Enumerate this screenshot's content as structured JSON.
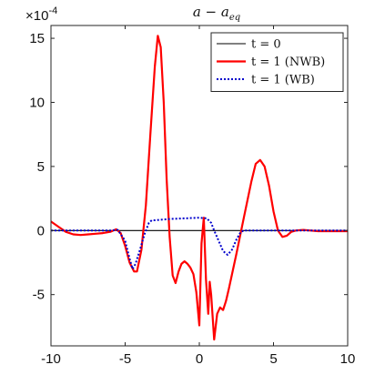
{
  "chart_data": {
    "type": "line",
    "title": "a − a_eq",
    "title_main": "a − a",
    "title_sub": "eq",
    "xlabel": "",
    "ylabel": "",
    "scale_prefix": "×10",
    "scale_exponent": "-4",
    "xlim": [
      -10,
      10
    ],
    "ylim": [
      -9,
      16
    ],
    "x_ticks": [
      -10,
      -5,
      0,
      5,
      10
    ],
    "x_tick_labels": [
      "-10",
      "-5",
      "0",
      "5",
      "10"
    ],
    "y_ticks": [
      -5,
      0,
      5,
      10,
      15
    ],
    "y_tick_labels": [
      "-5",
      "0",
      "5",
      "10",
      "15"
    ],
    "grid": false,
    "legend_position": "top-right",
    "series": [
      {
        "name": "t = 0",
        "color": "#000000",
        "style": "solid",
        "x": [
          -10,
          10
        ],
        "y": [
          0,
          0
        ]
      },
      {
        "name": "t = 1 (NWB)",
        "color": "#ff0000",
        "style": "solid",
        "x": [
          -10,
          -9.5,
          -9,
          -8.5,
          -8,
          -7.5,
          -7,
          -6.5,
          -6,
          -5.6,
          -5.3,
          -5,
          -4.7,
          -4.4,
          -4.2,
          -3.9,
          -3.6,
          -3.3,
          -3.0,
          -2.8,
          -2.6,
          -2.4,
          -2.2,
          -2.0,
          -1.8,
          -1.6,
          -1.4,
          -1.2,
          -1.0,
          -0.8,
          -0.6,
          -0.4,
          -0.2,
          0.0,
          0.15,
          0.3,
          0.45,
          0.6,
          0.7,
          0.8,
          1.0,
          1.2,
          1.4,
          1.6,
          1.8,
          2.0,
          2.5,
          3.0,
          3.5,
          3.8,
          4.1,
          4.4,
          4.7,
          5.0,
          5.3,
          5.6,
          5.9,
          6.2,
          6.5,
          7.0,
          7.5,
          8.0,
          9.0,
          10.0
        ],
        "y": [
          0.7,
          0.3,
          -0.1,
          -0.3,
          -0.35,
          -0.3,
          -0.25,
          -0.2,
          -0.1,
          0.1,
          -0.2,
          -1.2,
          -2.5,
          -3.2,
          -3.2,
          -1.5,
          2.0,
          7.5,
          12.8,
          15.2,
          14.3,
          10.0,
          4.0,
          -0.5,
          -3.5,
          -4.1,
          -3.2,
          -2.6,
          -2.4,
          -2.6,
          -2.9,
          -3.4,
          -4.8,
          -7.4,
          -1.0,
          1.0,
          -3.8,
          -6.5,
          -4.0,
          -5.0,
          -8.5,
          -6.5,
          -6.0,
          -6.2,
          -5.5,
          -4.5,
          -1.8,
          1.0,
          3.8,
          5.2,
          5.5,
          5.0,
          3.5,
          1.5,
          0.0,
          -0.5,
          -0.4,
          -0.1,
          0.0,
          0.05,
          0.0,
          -0.05,
          -0.05,
          -0.05
        ]
      },
      {
        "name": "t = 1 (WB)",
        "color": "#0000cc",
        "style": "dotted",
        "x": [
          -10,
          -8,
          -6,
          -5.5,
          -5,
          -4.7,
          -4.5,
          -4.3,
          -4.0,
          -3.7,
          -3.4,
          -3.2,
          -3.0,
          -2.5,
          -2.0,
          -1.0,
          0.0,
          0.5,
          0.8,
          1.0,
          1.3,
          1.6,
          1.9,
          2.2,
          2.5,
          2.8,
          3.0,
          4.0,
          6.0,
          8.0,
          10.0
        ],
        "y": [
          0.0,
          0.0,
          0.0,
          0.05,
          -0.8,
          -2.2,
          -3.0,
          -2.6,
          -1.5,
          -0.3,
          0.6,
          0.8,
          0.8,
          0.85,
          0.9,
          0.95,
          1.0,
          0.95,
          0.6,
          0.0,
          -0.8,
          -1.6,
          -1.9,
          -1.5,
          -0.7,
          -0.1,
          0.0,
          0.0,
          0.0,
          0.0,
          0.0
        ]
      }
    ]
  }
}
